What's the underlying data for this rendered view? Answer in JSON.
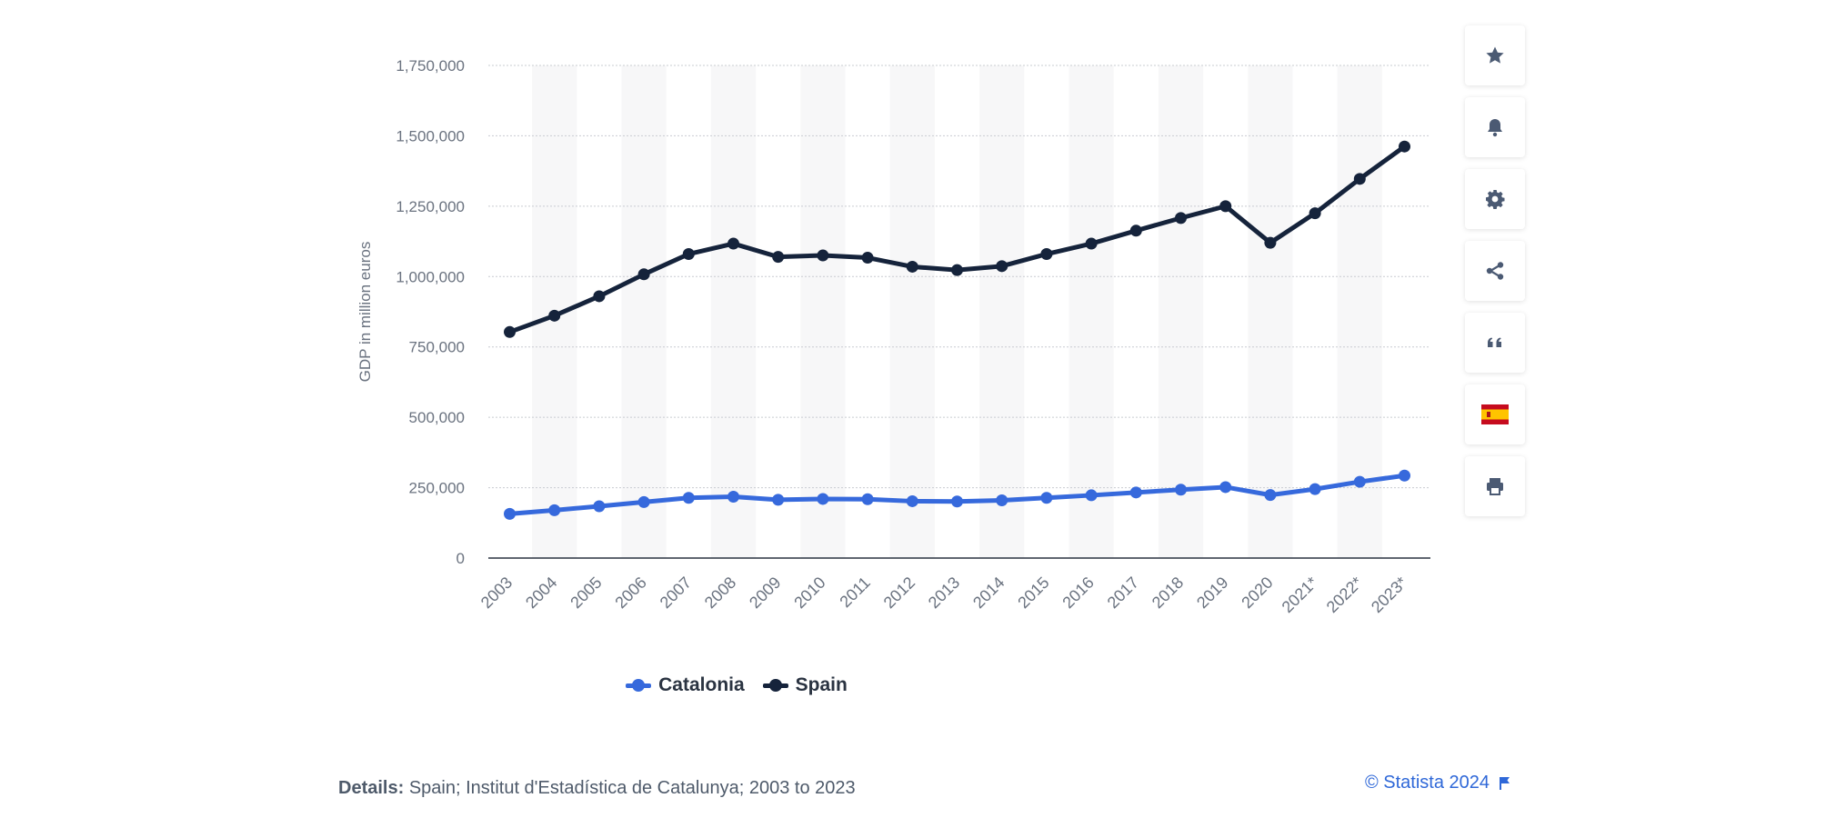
{
  "chart_data": {
    "type": "line",
    "title": "",
    "xlabel": "",
    "ylabel": "GDP in million euros",
    "ylim": [
      0,
      1750000
    ],
    "yticks": [
      0,
      250000,
      500000,
      750000,
      1000000,
      1250000,
      1500000,
      1750000
    ],
    "ytick_labels": [
      "0",
      "250,000",
      "500,000",
      "750,000",
      "1,000,000",
      "1,250,000",
      "1,500,000",
      "1,750,000"
    ],
    "categories": [
      "2003",
      "2004",
      "2005",
      "2006",
      "2007",
      "2008",
      "2009",
      "2010",
      "2011",
      "2012",
      "2013",
      "2014",
      "2015",
      "2016",
      "2017",
      "2018",
      "2019",
      "2020",
      "2021*",
      "2022*",
      "2023*"
    ],
    "series": [
      {
        "name": "Catalonia",
        "color": "#3669dc",
        "values": [
          157000,
          170000,
          184000,
          199000,
          214000,
          218000,
          207000,
          210000,
          209000,
          202000,
          201000,
          205000,
          214000,
          223000,
          233000,
          243000,
          252000,
          224000,
          245000,
          271000,
          293000
        ]
      },
      {
        "name": "Spain",
        "color": "#15233b",
        "values": [
          803000,
          861000,
          930000,
          1008000,
          1080000,
          1117000,
          1070000,
          1075000,
          1067000,
          1035000,
          1023000,
          1037000,
          1080000,
          1117000,
          1163000,
          1208000,
          1250000,
          1120000,
          1225000,
          1347000,
          1462000
        ]
      }
    ],
    "grid": true,
    "legend_position": "bottom-center"
  },
  "details": {
    "label": "Details:",
    "text": "Spain; Institut d'Estadística de Catalunya; 2003 to 2023"
  },
  "copyright": "© Statista 2024",
  "toolbar": {
    "icons": [
      "star-icon",
      "bell-icon",
      "gear-icon",
      "share-icon",
      "quote-icon",
      "spain-flag-icon",
      "print-icon"
    ]
  },
  "colors": {
    "accent": "#2f68d8",
    "axis_text": "#6b7380",
    "grid": "#c9ccd1",
    "band": "#f7f7f8"
  }
}
